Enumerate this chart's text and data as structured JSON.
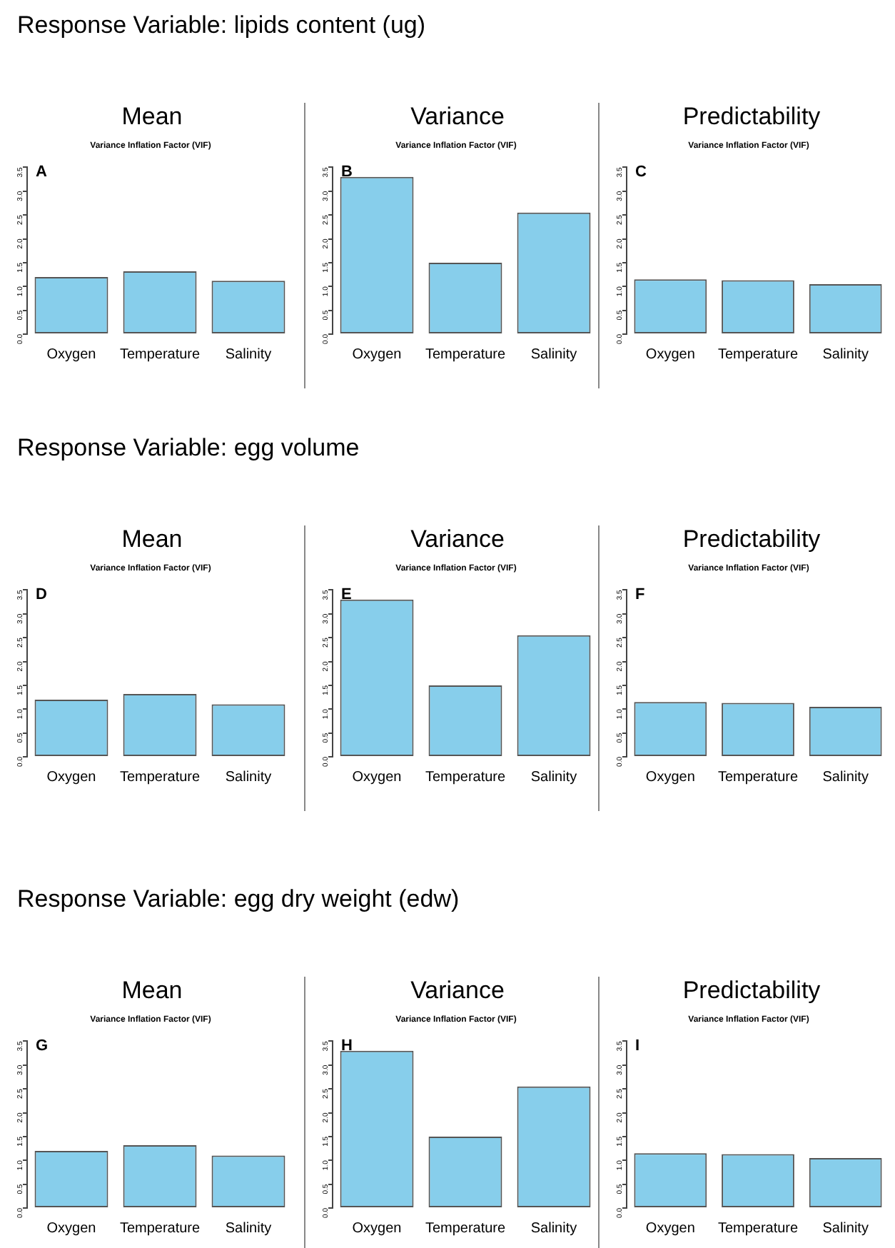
{
  "chart_data": [
    {
      "type": "bar",
      "title": "Mean",
      "subtitle": "Variance Inflation Factor (VIF)",
      "annotations": [
        "Response Variable: lipids content (ug)",
        "A"
      ],
      "categories": [
        "Oxygen",
        "Temperature",
        "Salinity"
      ],
      "values": [
        1.2,
        1.32,
        1.12
      ],
      "color": "#87ceeb",
      "ylim": [
        0,
        3.5
      ],
      "yticks": [
        {
          "value": 0,
          "label": "0.0"
        },
        {
          "value": 0.5,
          "label": "0.5"
        },
        {
          "value": 1,
          "label": "1.0"
        },
        {
          "value": 1.5,
          "label": "1.5"
        },
        {
          "value": 2,
          "label": "2.0"
        },
        {
          "value": 2.5,
          "label": "2.5"
        },
        {
          "value": 3,
          "label": "3.0"
        },
        {
          "value": 3.5,
          "label": "3.5"
        }
      ],
      "grid": false
    },
    {
      "type": "bar",
      "title": "Variance",
      "subtitle": "Variance Inflation Factor (VIF)",
      "annotations": [
        "B"
      ],
      "categories": [
        "Oxygen",
        "Temperature",
        "Salinity"
      ],
      "values": [
        3.3,
        1.5,
        2.55
      ],
      "color": "#87ceeb",
      "ylim": [
        0,
        3.5
      ],
      "yticks": [
        {
          "value": 0,
          "label": "0.0"
        },
        {
          "value": 0.5,
          "label": "0.5"
        },
        {
          "value": 1,
          "label": "1.0"
        },
        {
          "value": 1.5,
          "label": "1.5"
        },
        {
          "value": 2,
          "label": "2.0"
        },
        {
          "value": 2.5,
          "label": "2.5"
        },
        {
          "value": 3,
          "label": "3.0"
        },
        {
          "value": 3.5,
          "label": "3.5"
        }
      ],
      "grid": false
    },
    {
      "type": "bar",
      "title": "Predictability",
      "subtitle": "Variance Inflation Factor (VIF)",
      "annotations": [
        "C"
      ],
      "categories": [
        "Oxygen",
        "Temperature",
        "Salinity"
      ],
      "values": [
        1.15,
        1.13,
        1.05
      ],
      "color": "#87ceeb",
      "ylim": [
        0,
        3.5
      ],
      "yticks": [
        {
          "value": 0,
          "label": "0.0"
        },
        {
          "value": 0.5,
          "label": "0.5"
        },
        {
          "value": 1,
          "label": "1.0"
        },
        {
          "value": 1.5,
          "label": "1.5"
        },
        {
          "value": 2,
          "label": "2.0"
        },
        {
          "value": 2.5,
          "label": "2.5"
        },
        {
          "value": 3,
          "label": "3.0"
        },
        {
          "value": 3.5,
          "label": "3.5"
        }
      ],
      "grid": false
    },
    {
      "type": "bar",
      "title": "Mean",
      "subtitle": "Variance Inflation Factor (VIF)",
      "annotations": [
        "Response Variable: egg volume",
        "D"
      ],
      "categories": [
        "Oxygen",
        "Temperature",
        "Salinity"
      ],
      "values": [
        1.2,
        1.32,
        1.1
      ],
      "color": "#87ceeb",
      "ylim": [
        0,
        3.5
      ],
      "yticks": [
        {
          "value": 0,
          "label": "0.0"
        },
        {
          "value": 0.5,
          "label": "0.5"
        },
        {
          "value": 1,
          "label": "1.0"
        },
        {
          "value": 1.5,
          "label": "1.5"
        },
        {
          "value": 2,
          "label": "2.0"
        },
        {
          "value": 2.5,
          "label": "2.5"
        },
        {
          "value": 3,
          "label": "3.0"
        },
        {
          "value": 3.5,
          "label": "3.5"
        }
      ],
      "grid": false
    },
    {
      "type": "bar",
      "title": "Variance",
      "subtitle": "Variance Inflation Factor (VIF)",
      "annotations": [
        "E"
      ],
      "categories": [
        "Oxygen",
        "Temperature",
        "Salinity"
      ],
      "values": [
        3.3,
        1.5,
        2.55
      ],
      "color": "#87ceeb",
      "ylim": [
        0,
        3.5
      ],
      "yticks": [
        {
          "value": 0,
          "label": "0.0"
        },
        {
          "value": 0.5,
          "label": "0.5"
        },
        {
          "value": 1,
          "label": "1.0"
        },
        {
          "value": 1.5,
          "label": "1.5"
        },
        {
          "value": 2,
          "label": "2.0"
        },
        {
          "value": 2.5,
          "label": "2.5"
        },
        {
          "value": 3,
          "label": "3.0"
        },
        {
          "value": 3.5,
          "label": "3.5"
        }
      ],
      "grid": false
    },
    {
      "type": "bar",
      "title": "Predictability",
      "subtitle": "Variance Inflation Factor (VIF)",
      "annotations": [
        "F"
      ],
      "categories": [
        "Oxygen",
        "Temperature",
        "Salinity"
      ],
      "values": [
        1.15,
        1.13,
        1.05
      ],
      "color": "#87ceeb",
      "ylim": [
        0,
        3.5
      ],
      "yticks": [
        {
          "value": 0,
          "label": "0.0"
        },
        {
          "value": 0.5,
          "label": "0.5"
        },
        {
          "value": 1,
          "label": "1.0"
        },
        {
          "value": 1.5,
          "label": "1.5"
        },
        {
          "value": 2,
          "label": "2.0"
        },
        {
          "value": 2.5,
          "label": "2.5"
        },
        {
          "value": 3,
          "label": "3.0"
        },
        {
          "value": 3.5,
          "label": "3.5"
        }
      ],
      "grid": false
    },
    {
      "type": "bar",
      "title": "Mean",
      "subtitle": "Variance Inflation Factor (VIF)",
      "annotations": [
        "Response Variable: egg dry weight (edw)",
        "G"
      ],
      "categories": [
        "Oxygen",
        "Temperature",
        "Salinity"
      ],
      "values": [
        1.2,
        1.32,
        1.1
      ],
      "color": "#87ceeb",
      "ylim": [
        0,
        3.5
      ],
      "yticks": [
        {
          "value": 0,
          "label": "0.0"
        },
        {
          "value": 0.5,
          "label": "0.5"
        },
        {
          "value": 1,
          "label": "1.0"
        },
        {
          "value": 1.5,
          "label": "1.5"
        },
        {
          "value": 2,
          "label": "2.0"
        },
        {
          "value": 2.5,
          "label": "2.5"
        },
        {
          "value": 3,
          "label": "3.0"
        },
        {
          "value": 3.5,
          "label": "3.5"
        }
      ],
      "grid": false
    },
    {
      "type": "bar",
      "title": "Variance",
      "subtitle": "Variance Inflation Factor (VIF)",
      "annotations": [
        "H"
      ],
      "categories": [
        "Oxygen",
        "Temperature",
        "Salinity"
      ],
      "values": [
        3.3,
        1.5,
        2.55
      ],
      "color": "#87ceeb",
      "ylim": [
        0,
        3.5
      ],
      "yticks": [
        {
          "value": 0,
          "label": "0.0"
        },
        {
          "value": 0.5,
          "label": "0.5"
        },
        {
          "value": 1,
          "label": "1.0"
        },
        {
          "value": 1.5,
          "label": "1.5"
        },
        {
          "value": 2,
          "label": "2.0"
        },
        {
          "value": 2.5,
          "label": "2.5"
        },
        {
          "value": 3,
          "label": "3.0"
        },
        {
          "value": 3.5,
          "label": "3.5"
        }
      ],
      "grid": false
    },
    {
      "type": "bar",
      "title": "Predictability",
      "subtitle": "Variance Inflation Factor (VIF)",
      "annotations": [
        "I"
      ],
      "categories": [
        "Oxygen",
        "Temperature",
        "Salinity"
      ],
      "values": [
        1.15,
        1.13,
        1.05
      ],
      "color": "#87ceeb",
      "ylim": [
        0,
        3.5
      ],
      "yticks": [
        {
          "value": 0,
          "label": "0.0"
        },
        {
          "value": 0.5,
          "label": "0.5"
        },
        {
          "value": 1,
          "label": "1.0"
        },
        {
          "value": 1.5,
          "label": "1.5"
        },
        {
          "value": 2,
          "label": "2.0"
        },
        {
          "value": 2.5,
          "label": "2.5"
        },
        {
          "value": 3,
          "label": "3.0"
        },
        {
          "value": 3.5,
          "label": "3.5"
        }
      ],
      "grid": false
    }
  ]
}
